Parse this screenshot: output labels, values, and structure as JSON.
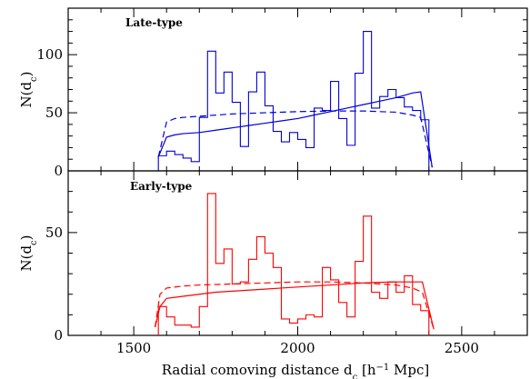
{
  "chart_data": [
    {
      "type": "line",
      "panel_label": "Late-type",
      "ylabel": "N(d_c)",
      "xlim": [
        1300,
        2700
      ],
      "ylim": [
        0,
        140
      ],
      "yticks": [
        0,
        50,
        100
      ],
      "xticks": [
        1500,
        2000,
        2500
      ],
      "color": "#0000dd",
      "histogram": {
        "edges": [
          1575,
          1600,
          1625,
          1650,
          1675,
          1700,
          1725,
          1750,
          1775,
          1800,
          1825,
          1850,
          1875,
          1900,
          1925,
          1950,
          1975,
          2000,
          2025,
          2050,
          2075,
          2100,
          2125,
          2150,
          2175,
          2200,
          2225,
          2250,
          2275,
          2300,
          2325,
          2350,
          2375,
          2400
        ],
        "counts": [
          13,
          17,
          14,
          11,
          8,
          46,
          103,
          67,
          85,
          59,
          21,
          68,
          85,
          56,
          34,
          25,
          33,
          27,
          20,
          54,
          52,
          77,
          45,
          22,
          84,
          120,
          54,
          64,
          70,
          63,
          55,
          52,
          44
        ]
      },
      "series": [
        {
          "style": "solid",
          "x": [
            1575,
            1600,
            1625,
            1650,
            1700,
            1750,
            1800,
            1850,
            1900,
            1950,
            2000,
            2050,
            2100,
            2150,
            2200,
            2250,
            2300,
            2350,
            2375,
            2410
          ],
          "y": [
            12,
            29,
            31,
            32,
            33,
            35,
            37,
            39,
            41,
            43,
            45,
            48,
            51,
            54,
            57,
            60,
            63,
            67,
            68,
            3
          ]
        },
        {
          "style": "dashed",
          "x": [
            1575,
            1600,
            1625,
            1650,
            1700,
            1800,
            1900,
            2000,
            2100,
            2200,
            2300,
            2350,
            2375,
            2410
          ],
          "y": [
            12,
            42,
            45,
            46,
            47,
            49,
            50,
            51,
            51.5,
            51.5,
            50.5,
            48,
            46,
            3
          ]
        }
      ]
    },
    {
      "type": "line",
      "panel_label": "Early-type",
      "xlabel": "Radial comoving distance d_c [h^-1 Mpc]",
      "ylabel": "N(d_c)",
      "xlim": [
        1300,
        2700
      ],
      "ylim": [
        0,
        80
      ],
      "yticks": [
        0,
        50
      ],
      "xticks": [
        1500,
        2000,
        2500
      ],
      "color": "#ff0000",
      "histogram": {
        "edges": [
          1575,
          1600,
          1625,
          1650,
          1675,
          1700,
          1725,
          1750,
          1775,
          1800,
          1825,
          1850,
          1875,
          1900,
          1925,
          1950,
          1975,
          2000,
          2025,
          2050,
          2075,
          2100,
          2125,
          2150,
          2175,
          2200,
          2225,
          2250,
          2275,
          2300,
          2325,
          2350,
          2375,
          2400
        ],
        "counts": [
          14,
          9,
          5,
          5,
          4,
          14,
          69,
          35,
          42,
          25,
          26,
          37,
          48,
          40,
          33,
          8,
          6,
          8,
          10,
          9,
          33,
          27,
          16,
          9,
          36,
          58,
          21,
          18,
          26,
          21,
          29,
          15,
          12
        ]
      },
      "series": [
        {
          "style": "solid",
          "x": [
            1565,
            1580,
            1600,
            1650,
            1700,
            1750,
            1800,
            1850,
            1900,
            1950,
            2000,
            2050,
            2100,
            2150,
            2200,
            2250,
            2300,
            2350,
            2380,
            2415
          ],
          "y": [
            4,
            14,
            18,
            19,
            20,
            21,
            21.5,
            22,
            22.5,
            23,
            23.5,
            24,
            24.5,
            25,
            25.5,
            25.8,
            26,
            26,
            26,
            3
          ]
        },
        {
          "style": "dashed",
          "x": [
            1565,
            1580,
            1600,
            1650,
            1700,
            1800,
            1900,
            2000,
            2100,
            2200,
            2300,
            2350,
            2380,
            2415
          ],
          "y": [
            4,
            20,
            23,
            24,
            24.5,
            25,
            25.5,
            26,
            26,
            25.5,
            24.5,
            23,
            21,
            3
          ]
        }
      ]
    }
  ]
}
